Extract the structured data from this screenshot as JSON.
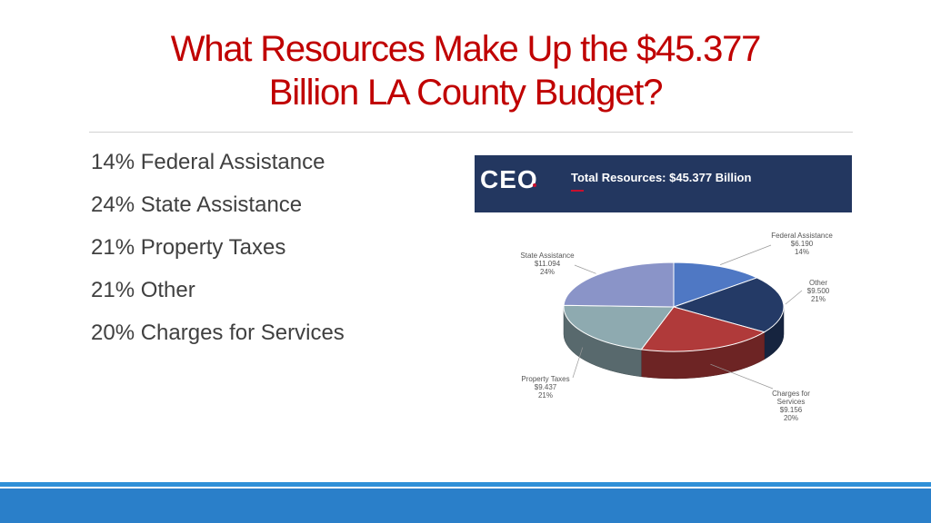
{
  "slide": {
    "title_line1": "What Resources Make Up the $45.377",
    "title_line2": "Billion LA County Budget?",
    "bullets": [
      "14% Federal Assistance",
      "24% State Assistance",
      "21% Property Taxes",
      "21% Other",
      "20% Charges for Services"
    ]
  },
  "banner": {
    "logo": "CEO",
    "title": "Total Resources: $45.377 Billion"
  },
  "chart_data": {
    "type": "pie",
    "title": "Total Resources: $45.377 Billion",
    "slices": [
      {
        "label": "Federal Assistance",
        "value": 6.19,
        "value_label": "$6.190",
        "pct_label": "14%",
        "color": "#4f78c4"
      },
      {
        "label": "Other",
        "value": 9.5,
        "value_label": "$9.500",
        "pct_label": "21%",
        "color": "#243a66"
      },
      {
        "label": "Charges for Services",
        "value": 9.156,
        "value_label": "$9.156",
        "pct_label": "20%",
        "color": "#b03a3a"
      },
      {
        "label": "Property Taxes",
        "value": 9.437,
        "value_label": "$9.437",
        "pct_label": "21%",
        "color": "#8eaab0"
      },
      {
        "label": "State Assistance",
        "value": 11.094,
        "value_label": "$11.094",
        "pct_label": "24%",
        "color": "#8a94c8"
      }
    ],
    "label_lines": {
      "Federal Assistance": [
        "Federal Assistance",
        "$6.190",
        "14%"
      ],
      "Other": [
        "Other",
        "$9.500",
        "21%"
      ],
      "Charges for Services": [
        "Charges for",
        "Services",
        "$9.156",
        "20%"
      ],
      "Property Taxes": [
        "Property Taxes",
        "$9.437",
        "21%"
      ],
      "State Assistance": [
        "State Assistance",
        "$11.094",
        "24%"
      ]
    }
  },
  "colors": {
    "title": "#c00000",
    "banner": "#233760",
    "footer": "#2a7fc9"
  }
}
